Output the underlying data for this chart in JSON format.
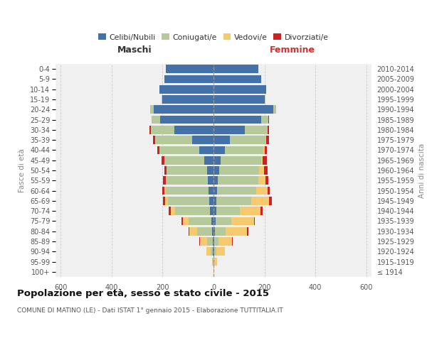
{
  "age_groups": [
    "100+",
    "95-99",
    "90-94",
    "85-89",
    "80-84",
    "75-79",
    "70-74",
    "65-69",
    "60-64",
    "55-59",
    "50-54",
    "45-49",
    "40-44",
    "35-39",
    "30-34",
    "25-29",
    "20-24",
    "15-19",
    "10-14",
    "5-9",
    "0-4"
  ],
  "birth_years": [
    "≤ 1914",
    "1915-1919",
    "1920-1924",
    "1925-1929",
    "1930-1934",
    "1935-1939",
    "1940-1944",
    "1945-1949",
    "1950-1954",
    "1955-1959",
    "1960-1964",
    "1965-1969",
    "1970-1974",
    "1975-1979",
    "1980-1984",
    "1985-1989",
    "1990-1994",
    "1995-1999",
    "2000-2004",
    "2005-2009",
    "2010-2014"
  ],
  "colors": {
    "celibi": "#4472a8",
    "coniugati": "#b5c99a",
    "vedovi": "#f5c96d",
    "divorziati": "#cc2222"
  },
  "maschi": {
    "celibi": [
      0,
      1,
      2,
      4,
      6,
      9,
      14,
      18,
      20,
      22,
      25,
      35,
      55,
      85,
      155,
      210,
      235,
      202,
      212,
      192,
      186
    ],
    "coniugati": [
      0,
      2,
      8,
      22,
      58,
      88,
      138,
      162,
      168,
      163,
      158,
      158,
      158,
      145,
      92,
      32,
      13,
      2,
      0,
      0,
      0
    ],
    "vedovi": [
      0,
      3,
      17,
      27,
      30,
      22,
      15,
      9,
      5,
      2,
      2,
      0,
      0,
      0,
      0,
      0,
      0,
      0,
      0,
      0,
      0
    ],
    "divorziati": [
      0,
      0,
      0,
      2,
      5,
      8,
      8,
      8,
      8,
      10,
      8,
      12,
      8,
      8,
      5,
      0,
      0,
      0,
      0,
      0,
      0
    ]
  },
  "femmine": {
    "nubili": [
      0,
      1,
      2,
      4,
      5,
      8,
      10,
      12,
      15,
      18,
      22,
      28,
      45,
      65,
      122,
      188,
      235,
      202,
      207,
      188,
      175
    ],
    "coniugate": [
      0,
      2,
      8,
      15,
      42,
      62,
      92,
      135,
      152,
      158,
      158,
      158,
      150,
      140,
      90,
      28,
      10,
      2,
      0,
      0,
      0
    ],
    "vedove": [
      2,
      10,
      35,
      55,
      85,
      88,
      82,
      72,
      45,
      28,
      18,
      8,
      5,
      2,
      0,
      0,
      0,
      0,
      0,
      0,
      0
    ],
    "divorziate": [
      0,
      0,
      0,
      2,
      5,
      5,
      8,
      10,
      10,
      12,
      15,
      15,
      10,
      10,
      5,
      2,
      0,
      0,
      0,
      0,
      0
    ]
  },
  "xlim": 620,
  "title": "Popolazione per età, sesso e stato civile - 2015",
  "subtitle": "COMUNE DI MATINO (LE) - Dati ISTAT 1° gennaio 2015 - Elaborazione TUTTITALIA.IT",
  "xlabel_maschi": "Maschi",
  "xlabel_femmine": "Femmine",
  "ylabel_left": "Fasce di età",
  "ylabel_right": "Anni di nascita",
  "legend_labels": [
    "Celibi/Nubili",
    "Coniugati/e",
    "Vedovi/e",
    "Divorziati/e"
  ],
  "bg_color": "#ffffff",
  "plot_bg": "#f0f0f0",
  "grid_color": "#cccccc"
}
